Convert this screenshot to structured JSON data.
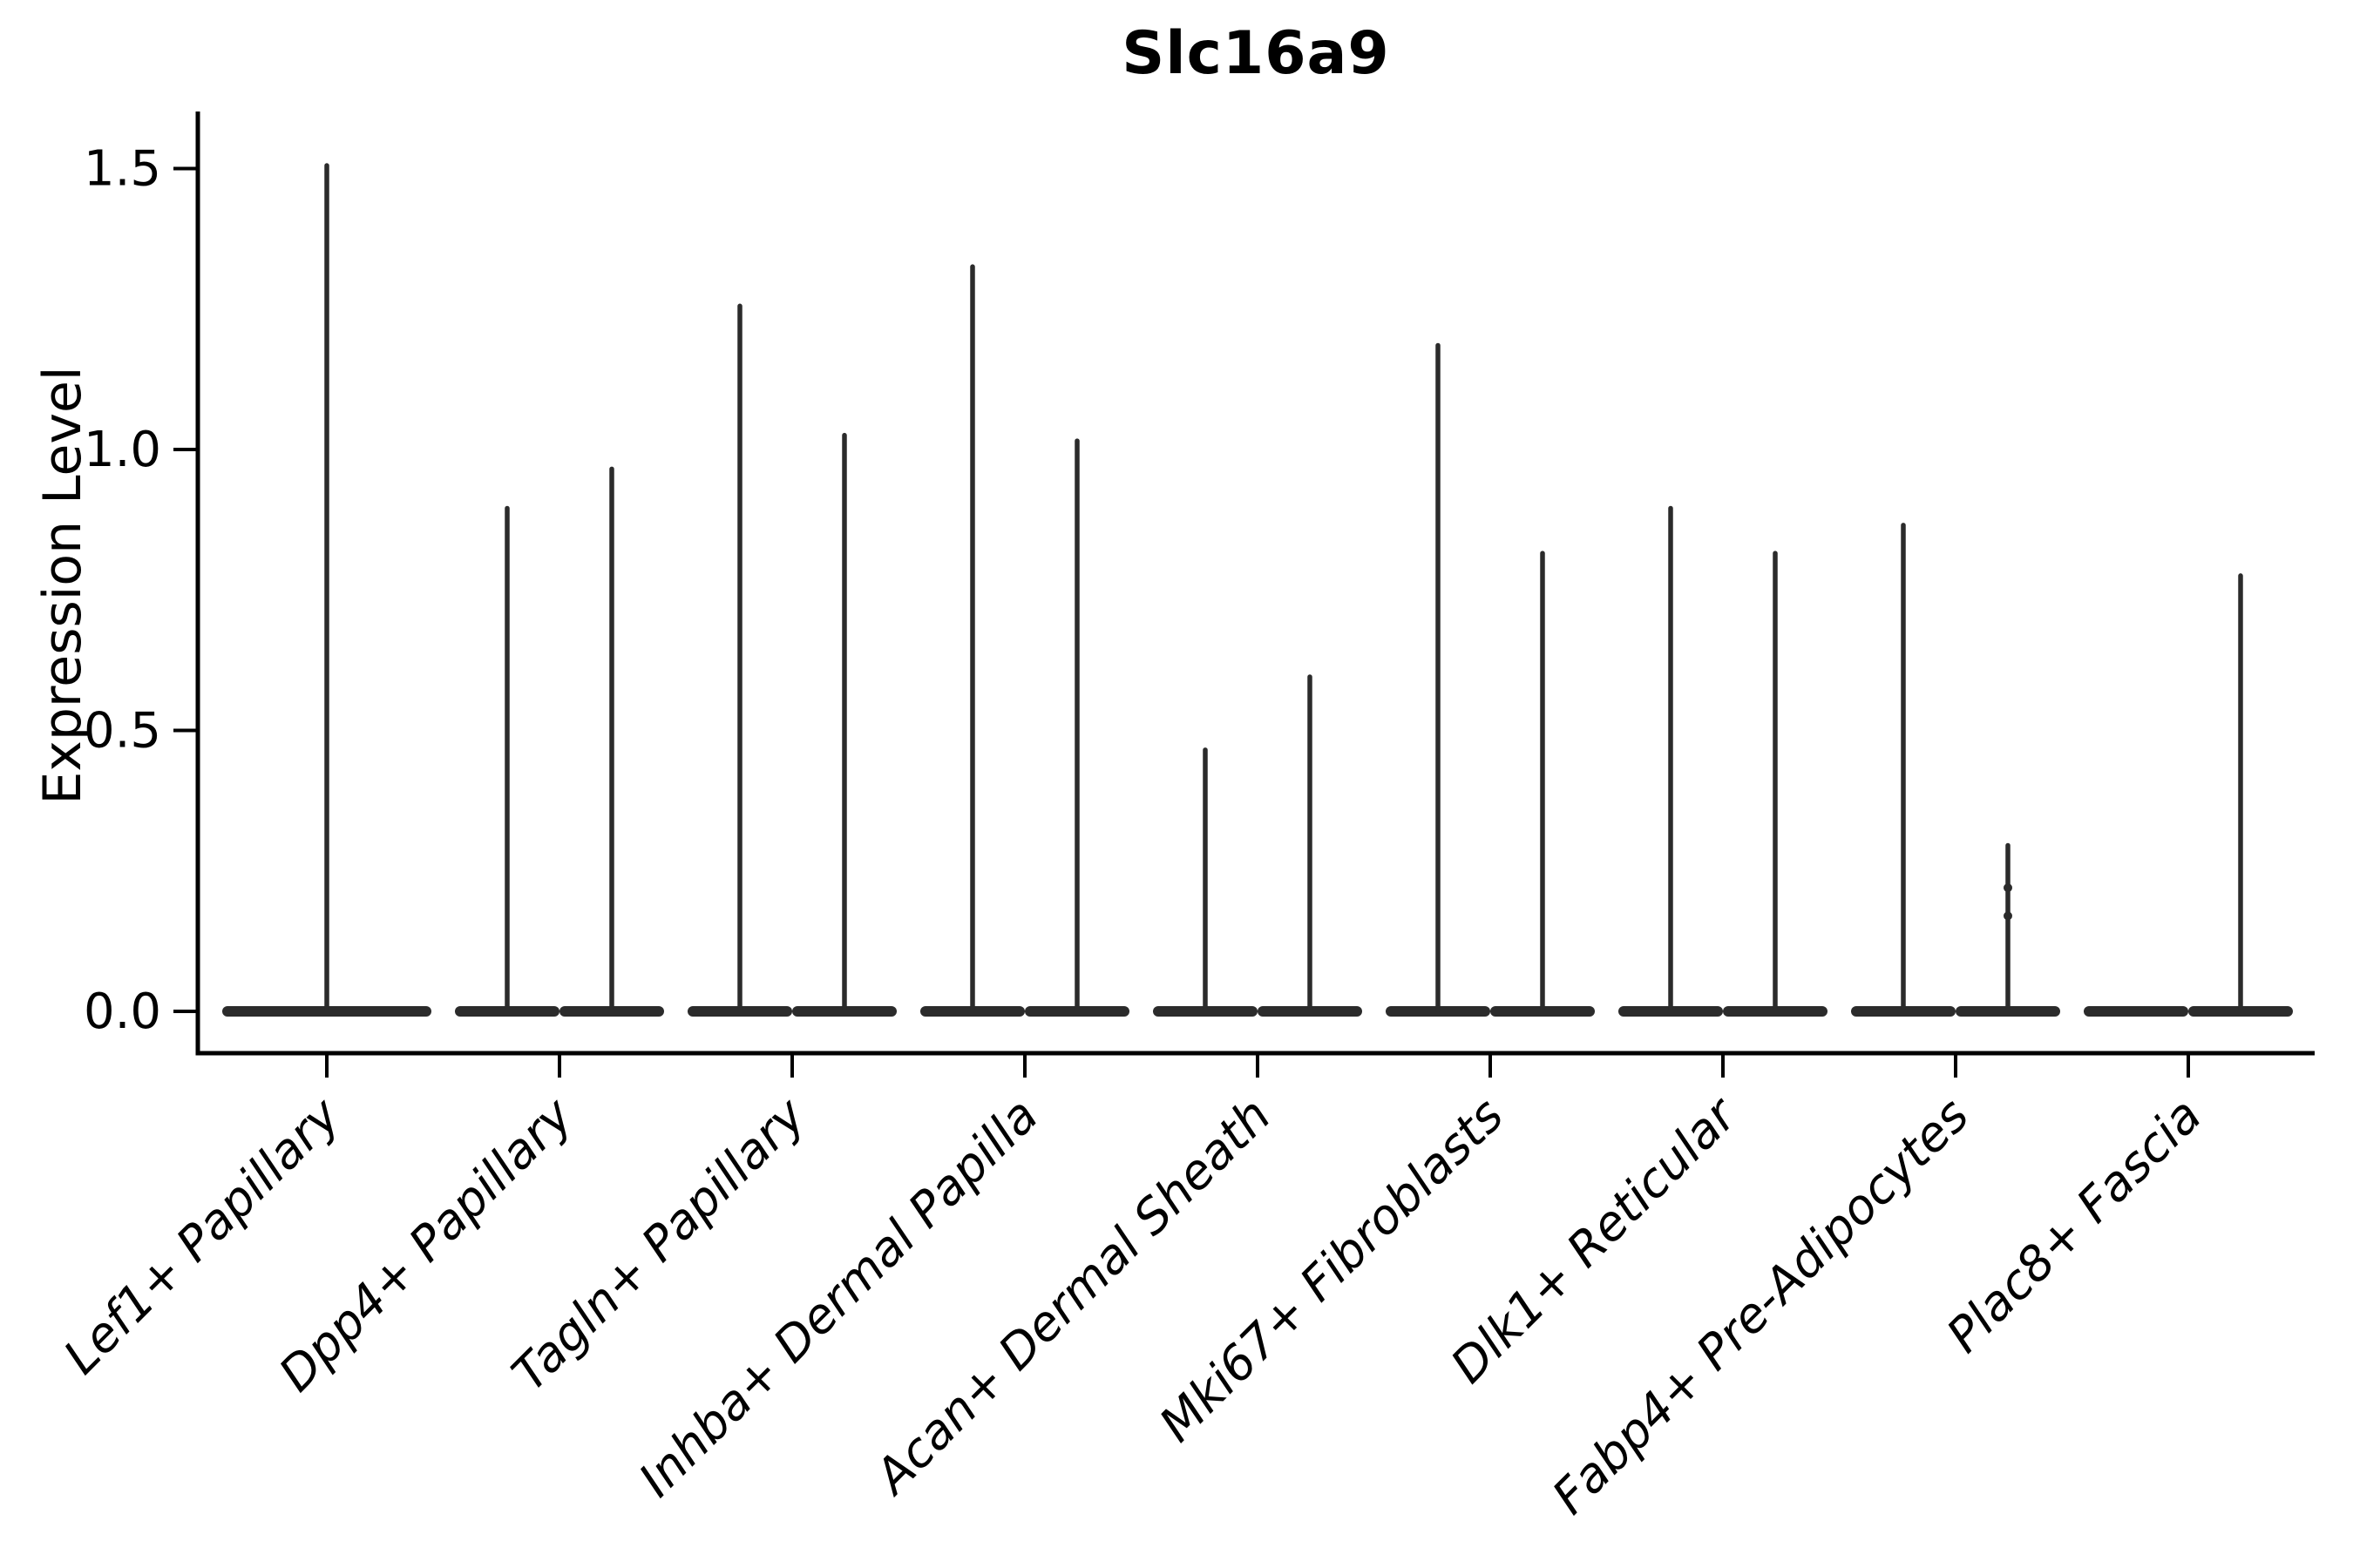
{
  "chart_data": {
    "type": "violin",
    "title": "Slc16a9",
    "xlabel": "",
    "ylabel": "Expression Level",
    "ylim": [
      0,
      1.55
    ],
    "y_ticks": [
      0.0,
      0.5,
      1.0,
      1.5
    ],
    "y_tick_labels": [
      "0.0",
      "0.5",
      "1.0",
      "1.5"
    ],
    "categories": [
      "Lef1+ Papillary",
      "Dpp4+ Papillary",
      "Tagln+ Papillary",
      "Inhba+ Dermal Papilla",
      "Acan+ Dermal Sheath",
      "Mki67+ Fibroblasts",
      "Dlk1+ Reticular",
      "Fabp4+ Pre-Adipocytes",
      "Plac8+ Fascia"
    ],
    "violin_color": "#2b2b2b",
    "axis_color": "#000000",
    "legend": "none",
    "grid": false,
    "description": "Violin plot of Slc16a9 expression; most cells at 0 give wide flat bases with thin spikes rising to each violin's maximum expression value.",
    "violins": [
      {
        "category": "Lef1+ Papillary",
        "layout": "single",
        "maxima": [
          1.51
        ]
      },
      {
        "category": "Dpp4+ Papillary",
        "layout": "pair",
        "maxima": [
          0.9,
          0.97
        ]
      },
      {
        "category": "Tagln+ Papillary",
        "layout": "pair",
        "maxima": [
          1.26,
          1.03
        ]
      },
      {
        "category": "Inhba+ Dermal Papilla",
        "layout": "pair",
        "maxima": [
          1.33,
          1.02
        ]
      },
      {
        "category": "Acan+ Dermal Sheath",
        "layout": "pair",
        "maxima": [
          0.47,
          0.6
        ]
      },
      {
        "category": "Mki67+ Fibroblasts",
        "layout": "pair",
        "maxima": [
          1.19,
          0.82
        ]
      },
      {
        "category": "Dlk1+ Reticular",
        "layout": "pair",
        "maxima": [
          0.9,
          0.82
        ]
      },
      {
        "category": "Fabp4+ Pre-Adipocytes",
        "layout": "pair",
        "maxima": [
          0.87,
          0.3
        ],
        "bumps": [
          {
            "violin": 1,
            "values": [
              0.22,
              0.17
            ]
          }
        ]
      },
      {
        "category": "Plac8+ Fascia",
        "layout": "pair",
        "maxima": [
          0.0,
          0.78
        ]
      }
    ]
  }
}
